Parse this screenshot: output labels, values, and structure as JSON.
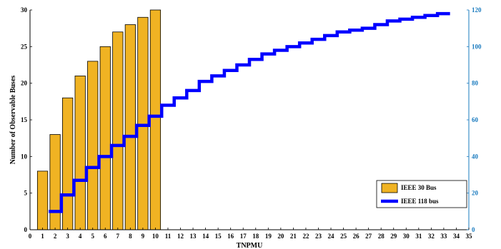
{
  "chart_data": {
    "type": "bar",
    "xlabel": "TNPMU",
    "ylabel": "Number of Observable Buses",
    "xlim": [
      0,
      35
    ],
    "ylim_left": [
      0,
      30
    ],
    "ylim_right": [
      0,
      120
    ],
    "x_ticks": [
      "0",
      "1",
      "2",
      "3",
      "4",
      "5",
      "6",
      "7",
      "8",
      "9",
      "10",
      "11",
      "12",
      "13",
      "14",
      "15",
      "16",
      "17",
      "18",
      "19",
      "20",
      "21",
      "22",
      "23",
      "24",
      "25",
      "26",
      "27",
      "28",
      "29",
      "30",
      "31",
      "32",
      "33",
      "34",
      "35"
    ],
    "left_ticks": [
      "0",
      "5",
      "10",
      "15",
      "20",
      "25",
      "30"
    ],
    "right_ticks": [
      "0",
      "20",
      "40",
      "60",
      "80",
      "100",
      "120"
    ],
    "legend_position": "lower-right",
    "series": [
      {
        "name": "IEEE 30 Bus",
        "type": "bar",
        "axis": "left",
        "color": "#f0b323",
        "x": [
          1,
          2,
          3,
          4,
          5,
          6,
          7,
          8,
          9,
          10
        ],
        "values": [
          8,
          13,
          18,
          21,
          23,
          25,
          27,
          28,
          29,
          30
        ]
      },
      {
        "name": "IEEE 118 bus",
        "type": "stairs",
        "axis": "right",
        "color": "#0000ff",
        "x": [
          1,
          2,
          3,
          4,
          5,
          6,
          7,
          8,
          9,
          10,
          11,
          12,
          13,
          14,
          15,
          16,
          17,
          18,
          19,
          20,
          21,
          22,
          23,
          24,
          25,
          26,
          27,
          28,
          29,
          30,
          31,
          32
        ],
        "values": [
          10,
          19,
          27,
          34,
          40,
          46,
          51,
          57,
          62,
          68,
          72,
          76,
          81,
          84,
          87,
          90,
          93,
          96,
          98,
          100,
          102,
          104,
          106,
          108,
          109,
          110,
          112,
          114,
          115,
          116,
          117,
          118
        ]
      }
    ]
  }
}
